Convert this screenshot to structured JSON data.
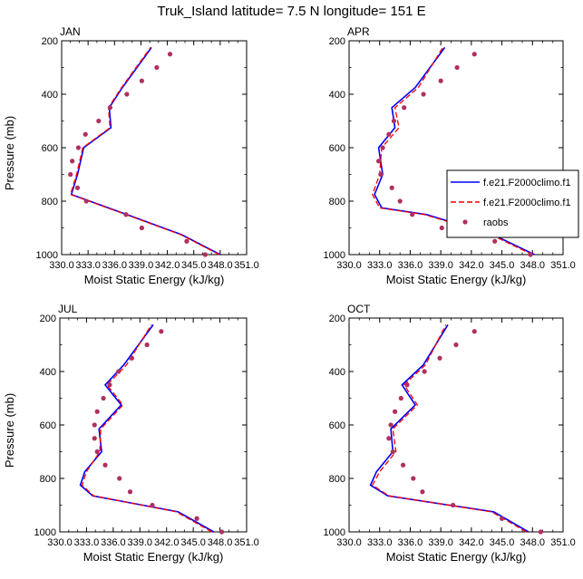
{
  "title": "Truk_Island  latitude= 7.5 N longitude= 151 E",
  "legend": {
    "entries": [
      {
        "label": "f.e21.F2000climo.f1",
        "style": "solid",
        "color": "#0000ff"
      },
      {
        "label": "f.e21.F2000climo.f1",
        "style": "dashed",
        "color": "#ff0000"
      },
      {
        "label": "raobs",
        "style": "marker",
        "color": "#b03060"
      }
    ]
  },
  "colors": {
    "model_solid": "#0000ff",
    "model_dashed": "#ff0000",
    "raobs": "#b03060"
  },
  "chart_data": [
    {
      "type": "line",
      "panel_label": "JAN",
      "xlabel": "Moist Static Energy (kJ/kg)",
      "ylabel": "Pressure (mb)",
      "xlim": [
        330.0,
        351.0
      ],
      "ylim": [
        1000,
        200
      ],
      "x_ticks": [
        "330.0",
        "333.0",
        "336.0",
        "339.0",
        "342.0",
        "345.0",
        "348.0",
        "351.0"
      ],
      "y_ticks": [
        "200",
        "400",
        "600",
        "800",
        "1000"
      ],
      "series": [
        {
          "name": "f.e21.F2000climo.f1",
          "style": "solid",
          "pressure": [
            1000,
            925,
            850,
            775,
            700,
            600,
            525,
            450,
            375,
            225
          ],
          "mse": [
            348.0,
            343.6,
            337.4,
            331.1,
            331.8,
            332.5,
            335.6,
            335.4,
            336.9,
            340.2
          ]
        },
        {
          "name": "f.e21.F2000climo.f1",
          "style": "dashed",
          "pressure": [
            1000,
            925,
            850,
            775,
            700,
            600,
            525,
            450,
            375,
            225
          ],
          "mse": [
            347.9,
            343.5,
            337.3,
            331.0,
            331.7,
            332.4,
            335.5,
            335.3,
            336.8,
            340.1
          ]
        },
        {
          "name": "raobs",
          "style": "marker",
          "pressure": [
            1000,
            950,
            900,
            850,
            800,
            750,
            700,
            650,
            600,
            550,
            500,
            450,
            400,
            350,
            300,
            250
          ],
          "mse": [
            346.3,
            344.2,
            339.1,
            337.3,
            332.8,
            331.8,
            331.0,
            331.2,
            331.9,
            332.7,
            334.2,
            335.5,
            337.4,
            339.1,
            340.8,
            342.3
          ]
        }
      ]
    },
    {
      "type": "line",
      "panel_label": "APR",
      "xlabel": "Moist Static Energy (kJ/kg)",
      "ylabel": "",
      "xlim": [
        330.0,
        351.0
      ],
      "ylim": [
        1000,
        200
      ],
      "x_ticks": [
        "330.0",
        "333.0",
        "336.0",
        "339.0",
        "342.0",
        "345.0",
        "348.0",
        "351.0"
      ],
      "y_ticks": [
        "200",
        "400",
        "600",
        "800",
        "1000"
      ],
      "series": [
        {
          "name": "f.e21.F2000climo.f1",
          "style": "solid",
          "pressure": [
            1000,
            925,
            850,
            825,
            775,
            700,
            600,
            525,
            450,
            375,
            225
          ],
          "mse": [
            348.2,
            344.1,
            337.6,
            333.2,
            332.5,
            333.3,
            332.9,
            334.5,
            334.2,
            336.5,
            339.4
          ]
        },
        {
          "name": "f.e21.F2000climo.f1",
          "style": "dashed",
          "pressure": [
            1000,
            925,
            850,
            825,
            775,
            700,
            600,
            525,
            450,
            375,
            225
          ],
          "mse": [
            348.0,
            343.9,
            337.4,
            333.0,
            332.3,
            333.0,
            333.2,
            334.9,
            334.5,
            336.8,
            339.2
          ]
        },
        {
          "name": "raobs",
          "style": "marker",
          "pressure": [
            1000,
            950,
            900,
            850,
            800,
            750,
            700,
            650,
            600,
            550,
            500,
            450,
            400,
            350,
            300,
            250
          ],
          "mse": [
            347.8,
            344.3,
            339.1,
            336.2,
            335.0,
            334.2,
            333.1,
            332.9,
            333.3,
            333.9,
            334.4,
            335.4,
            337.3,
            339.0,
            340.6,
            342.3
          ]
        }
      ]
    },
    {
      "type": "line",
      "panel_label": "JUL",
      "xlabel": "Moist Static Energy (kJ/kg)",
      "ylabel": "Pressure (mb)",
      "xlim": [
        330.0,
        351.0
      ],
      "ylim": [
        1000,
        200
      ],
      "x_ticks": [
        "330.0",
        "333.0",
        "336.0",
        "339.0",
        "342.0",
        "345.0",
        "348.0",
        "351.0"
      ],
      "y_ticks": [
        "200",
        "400",
        "600",
        "800",
        "1000"
      ],
      "series": [
        {
          "name": "f.e21.F2000climo.f1",
          "style": "solid",
          "pressure": [
            1000,
            925,
            865,
            825,
            775,
            700,
            615,
            525,
            450,
            375,
            225
          ],
          "mse": [
            347.3,
            343.3,
            333.7,
            332.3,
            332.8,
            334.7,
            334.4,
            336.9,
            335.1,
            337.2,
            340.5
          ]
        },
        {
          "name": "f.e21.F2000climo.f1",
          "style": "dashed",
          "pressure": [
            1000,
            925,
            865,
            825,
            775,
            700,
            615,
            525,
            450,
            375,
            225
          ],
          "mse": [
            347.1,
            343.1,
            333.8,
            332.5,
            333.0,
            334.5,
            334.6,
            337.1,
            335.3,
            337.5,
            340.3
          ]
        },
        {
          "name": "raobs",
          "style": "marker",
          "pressure": [
            1000,
            950,
            900,
            850,
            800,
            750,
            700,
            650,
            600,
            550,
            500,
            450,
            400,
            350,
            300,
            250
          ],
          "mse": [
            348.2,
            345.4,
            340.4,
            337.9,
            336.7,
            335.1,
            334.2,
            333.9,
            333.9,
            334.2,
            334.9,
            335.6,
            336.6,
            338.1,
            339.8,
            341.4
          ]
        }
      ]
    },
    {
      "type": "line",
      "panel_label": "OCT",
      "xlabel": "Moist Static Energy (kJ/kg)",
      "ylabel": "",
      "xlim": [
        330.0,
        351.0
      ],
      "ylim": [
        1000,
        200
      ],
      "x_ticks": [
        "330.0",
        "333.0",
        "336.0",
        "339.0",
        "342.0",
        "345.0",
        "348.0",
        "351.0"
      ],
      "y_ticks": [
        "200",
        "400",
        "600",
        "800",
        "1000"
      ],
      "series": [
        {
          "name": "f.e21.F2000climo.f1",
          "style": "solid",
          "pressure": [
            1000,
            925,
            865,
            825,
            775,
            700,
            615,
            525,
            450,
            375,
            225
          ],
          "mse": [
            347.6,
            344.2,
            333.8,
            332.1,
            332.7,
            334.3,
            334.1,
            336.5,
            335.2,
            337.3,
            339.7
          ]
        },
        {
          "name": "f.e21.F2000climo.f1",
          "style": "dashed",
          "pressure": [
            1000,
            925,
            865,
            825,
            775,
            700,
            615,
            525,
            450,
            375,
            225
          ],
          "mse": [
            347.4,
            344.0,
            333.9,
            332.3,
            333.0,
            334.6,
            334.3,
            336.7,
            335.4,
            337.5,
            339.5
          ]
        },
        {
          "name": "raobs",
          "style": "marker",
          "pressure": [
            1000,
            950,
            900,
            850,
            800,
            750,
            700,
            650,
            600,
            550,
            500,
            450,
            400,
            350,
            300,
            250
          ],
          "mse": [
            348.8,
            345.0,
            340.2,
            337.2,
            336.3,
            335.3,
            334.3,
            333.9,
            334.1,
            334.5,
            335.1,
            335.7,
            337.4,
            338.9,
            340.5,
            342.3
          ]
        }
      ]
    }
  ]
}
